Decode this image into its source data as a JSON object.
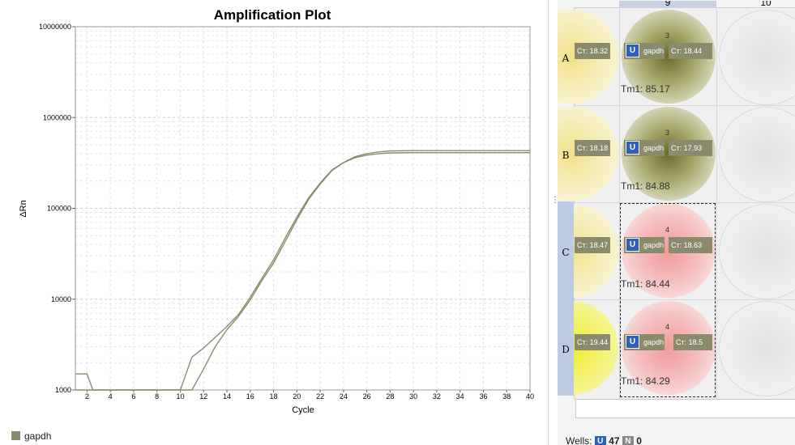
{
  "chart_data": {
    "type": "line",
    "title": "Amplification Plot",
    "xlabel": "Cycle",
    "ylabel": "ΔRn",
    "xlim": [
      1,
      40
    ],
    "ylim": [
      1000,
      10000000
    ],
    "yscale": "log",
    "xticks": [
      "2",
      "4",
      "6",
      "8",
      "10",
      "12",
      "14",
      "16",
      "18",
      "20",
      "22",
      "24",
      "26",
      "28",
      "30",
      "32",
      "34",
      "36",
      "38",
      "40"
    ],
    "yticks": [
      "1000",
      "10000",
      "100000",
      "1000000",
      "10000000"
    ],
    "grid": true,
    "legend": {
      "position": "bottom-left",
      "entries": [
        {
          "label": "gapdh",
          "color": "#8b8b6e"
        }
      ]
    },
    "series": [
      {
        "name": "gapdh",
        "color": "#8b8b6e",
        "x": [
          1,
          2,
          2.5,
          3,
          10,
          11,
          12,
          13,
          14,
          15,
          16,
          17,
          18,
          19,
          20,
          21,
          22,
          23,
          24,
          25,
          26,
          27,
          28,
          30,
          35,
          40
        ],
        "y": [
          1500,
          1500,
          1000,
          1000,
          1000,
          2300,
          2900,
          3800,
          5000,
          6800,
          10500,
          17000,
          27000,
          47000,
          80000,
          130000,
          190000,
          265000,
          320000,
          370000,
          400000,
          418000,
          428000,
          432000,
          432000,
          432000
        ]
      },
      {
        "name": "gapdh",
        "color": "#8b8b6e",
        "x": [
          1,
          10,
          11,
          12,
          13,
          14,
          15,
          16,
          17,
          18,
          19,
          20,
          21,
          22,
          23,
          24,
          25,
          26,
          27,
          28,
          30,
          35,
          40
        ],
        "y": [
          1000,
          1000,
          1000,
          1700,
          3000,
          4600,
          6500,
          9800,
          16000,
          25000,
          43000,
          75000,
          125000,
          185000,
          260000,
          318000,
          362000,
          385000,
          400000,
          408000,
          410000,
          410000,
          410000
        ]
      }
    ]
  },
  "plate": {
    "columns": [
      "9",
      "10"
    ],
    "rows": [
      "A",
      "B",
      "C",
      "D"
    ],
    "wells": [
      {
        "row": "A",
        "left_ct": "Cт: 18.32",
        "qty": "3",
        "target": "gapdh",
        "ct": "Cт: 18.44",
        "tm": "Tm1: 85.17"
      },
      {
        "row": "B",
        "left_ct": "Cт: 18.18",
        "qty": "3",
        "target": "gapdh",
        "ct": "Cт: 17.93",
        "tm": "Tm1: 84.88"
      },
      {
        "row": "C",
        "left_ct": "Cт: 18.47",
        "qty": "4",
        "target": "gapdh",
        "ct": "Cт: 18.63",
        "tm": "Tm1: 84.44"
      },
      {
        "row": "D",
        "left_ct": "Cт: 19.44",
        "qty": "4",
        "target": "gapdh",
        "ct": "Cт: 18.5",
        "tm": "Tm1: 84.29"
      }
    ],
    "task_letter": "U",
    "colors": {
      "olive": "#7a7a3a",
      "pink": "#f19a9a",
      "yellow": "#ecec2a",
      "selection": "#bccbe2"
    }
  },
  "status": {
    "wells_label": "Wells:",
    "unknown_letter": "U",
    "unknown_count": "47",
    "ntc_letter": "N",
    "ntc_count": "0"
  }
}
